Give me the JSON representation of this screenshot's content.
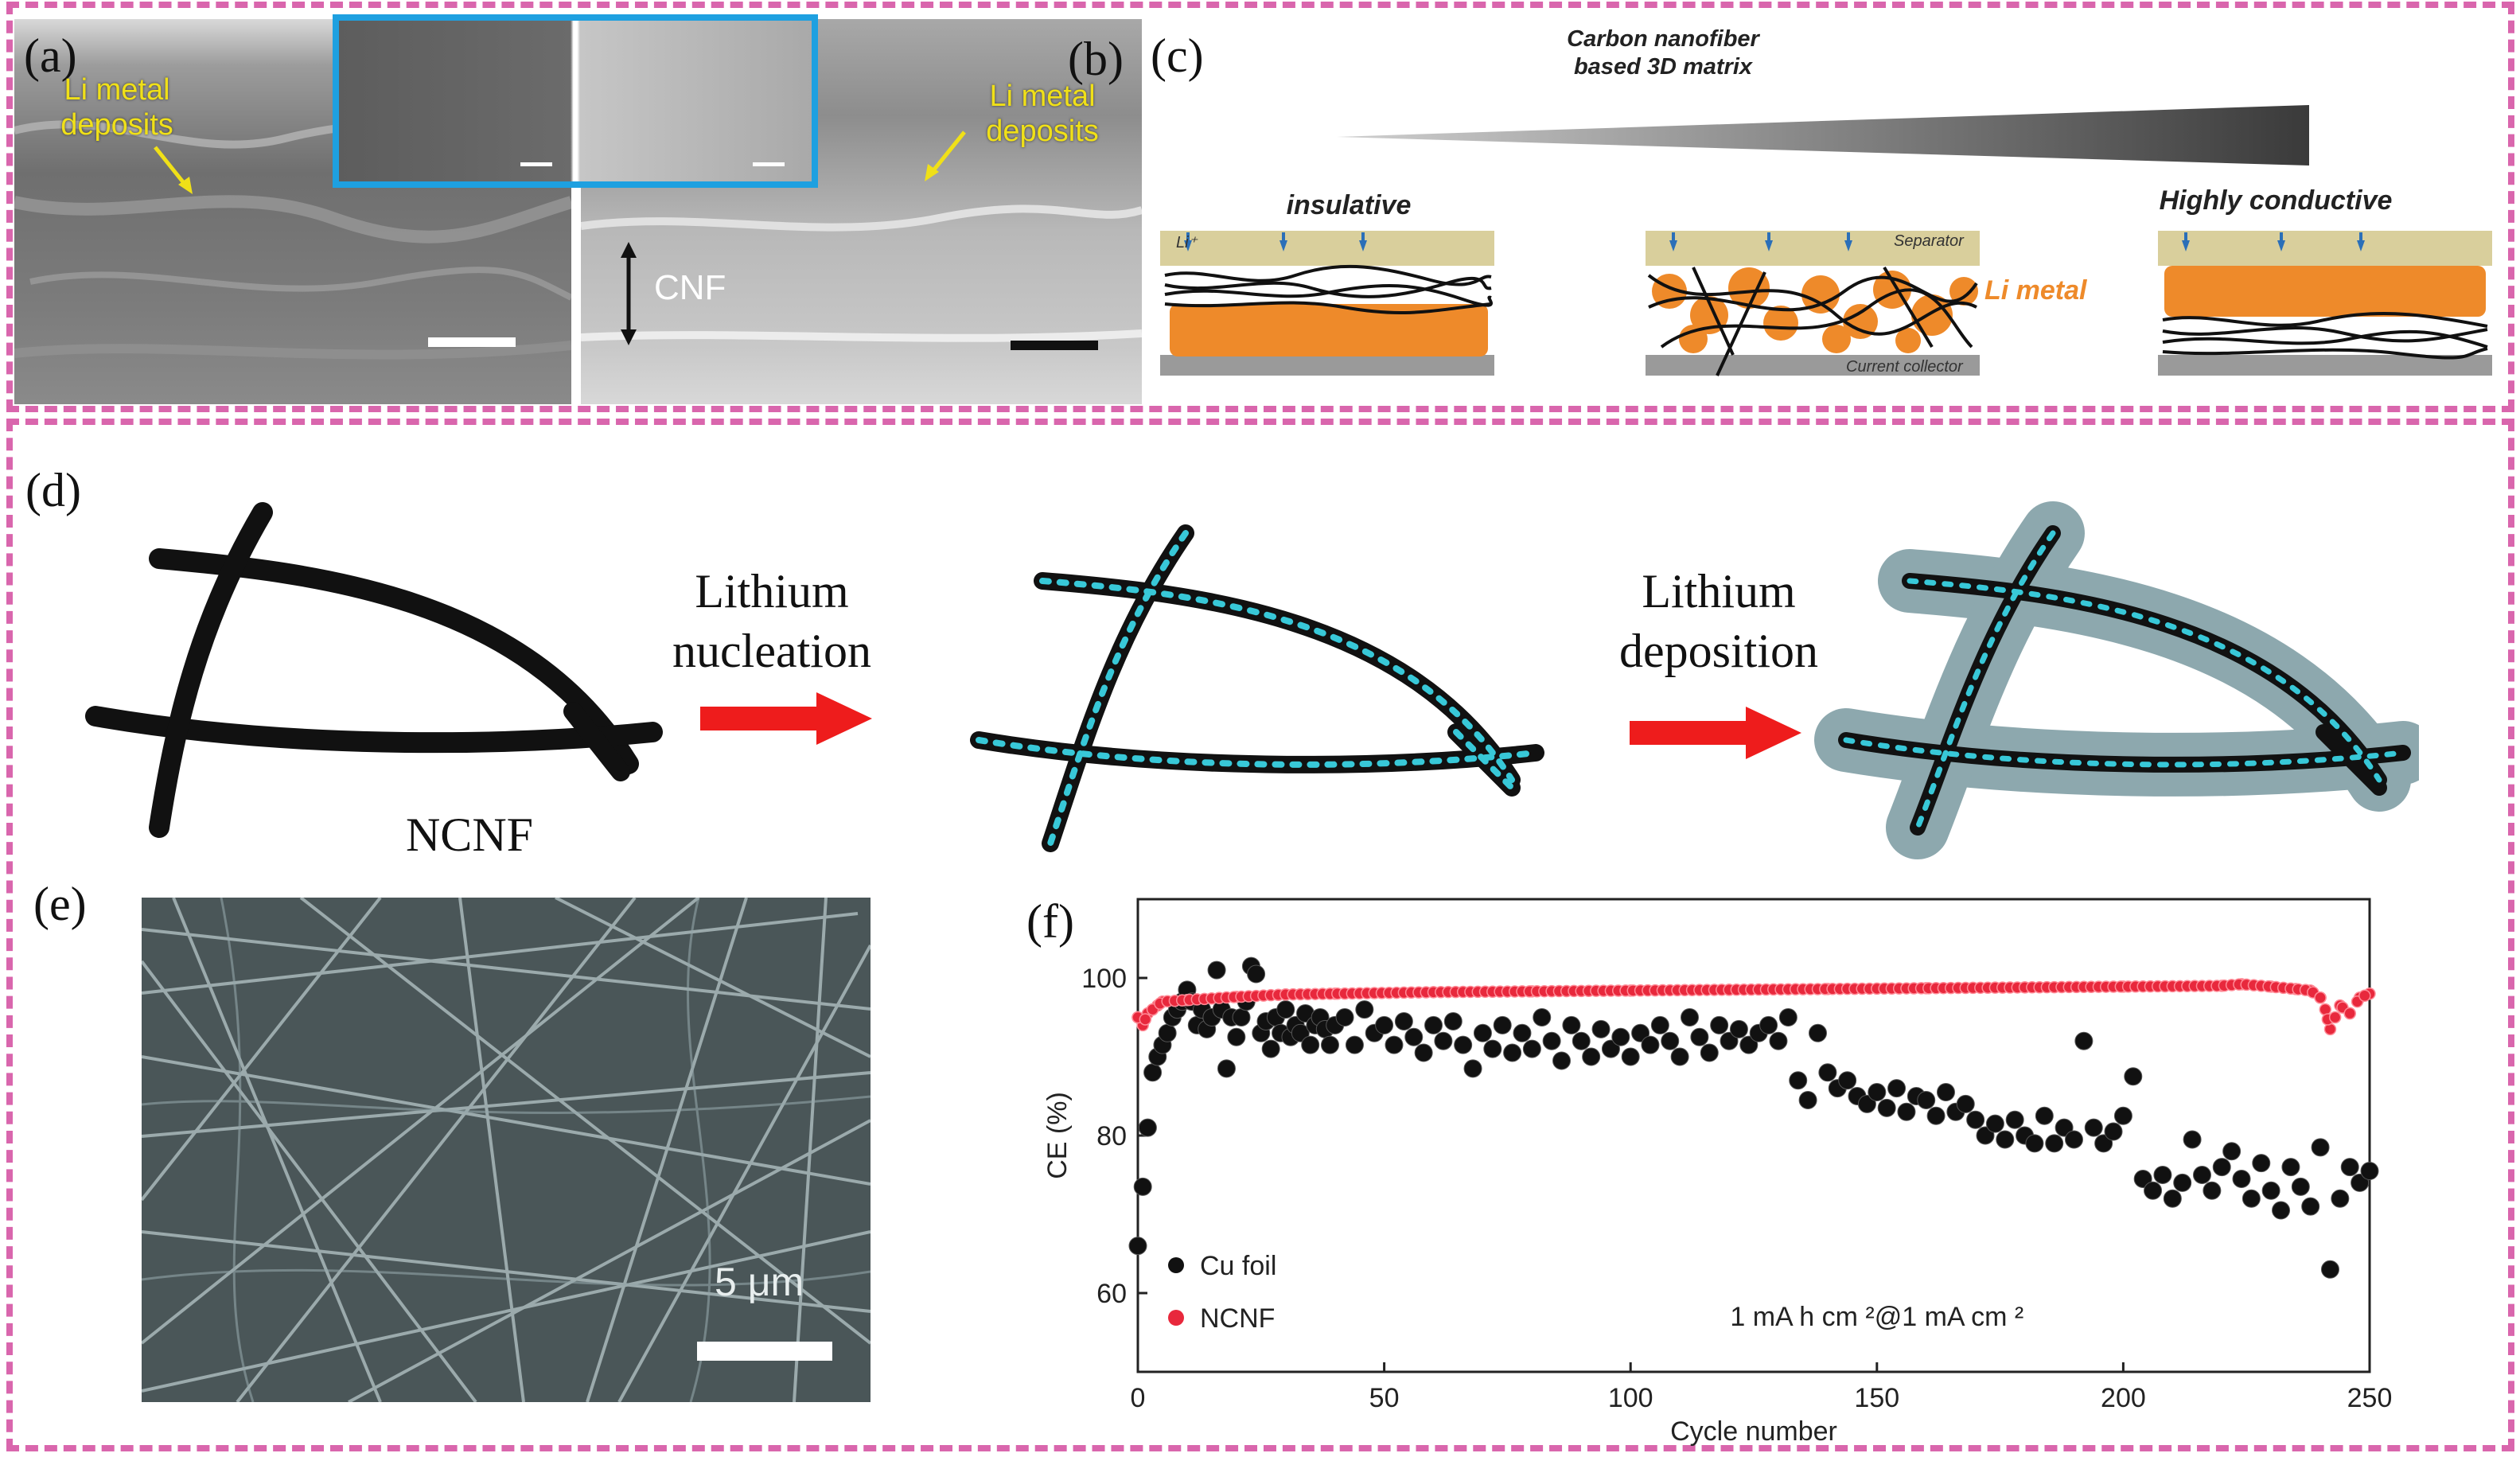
{
  "panels": {
    "a": {
      "label": "(a)",
      "annotation": "Li metal\ndeposits"
    },
    "b": {
      "label": "(b)",
      "annotation": "Li metal\ndeposits",
      "thickness_label": "CNF"
    },
    "c": {
      "label": "(c)",
      "title": "Carbon nanofiber\nbased 3D matrix",
      "left_caption": "insulative",
      "right_caption": "Highly conductive",
      "separator_label": "Separator",
      "collector_label": "Current collector",
      "li_metal_label": "Li metal",
      "ion_label": "Li⁺"
    },
    "d": {
      "label": "(d)",
      "step1": "Lithium\nnucleation",
      "step2": "Lithium\ndeposition",
      "fiber_label": "NCNF"
    },
    "e": {
      "label": "(e)",
      "scale_bar": "5 μm"
    },
    "f": {
      "label": "(f)"
    }
  },
  "colors": {
    "frame": "#d966ad",
    "highlight_box": "#1ea0e0",
    "li_metal": "#ee8a2a",
    "arrow": "#ee1c1c",
    "nuclei": "#38c8d8",
    "deposit": "#7a9aa0"
  },
  "chart_data": {
    "type": "scatter",
    "xlabel": "Cycle number",
    "ylabel": "CE (%)",
    "xlim": [
      0,
      250
    ],
    "ylim": [
      50,
      110
    ],
    "xticks": [
      0,
      50,
      100,
      150,
      200,
      250
    ],
    "yticks": [
      60,
      80,
      100
    ],
    "legend_position": "bottom-left",
    "annotation": "1 mA h cm ²@1 mA cm ²",
    "series": [
      {
        "name": "Cu foil",
        "color": "#111111",
        "points": [
          [
            0,
            66
          ],
          [
            1,
            73.5
          ],
          [
            2,
            81
          ],
          [
            3,
            88
          ],
          [
            4,
            90
          ],
          [
            5,
            91.5
          ],
          [
            6,
            93
          ],
          [
            7,
            95
          ],
          [
            8,
            96
          ],
          [
            9,
            97
          ],
          [
            10,
            98.5
          ],
          [
            11,
            97
          ],
          [
            12,
            94
          ],
          [
            13,
            96
          ],
          [
            14,
            93.5
          ],
          [
            15,
            95
          ],
          [
            16,
            101
          ],
          [
            17,
            96
          ],
          [
            18,
            88.5
          ],
          [
            19,
            95
          ],
          [
            20,
            92.5
          ],
          [
            21,
            95
          ],
          [
            22,
            97
          ],
          [
            23,
            101.5
          ],
          [
            24,
            100.5
          ],
          [
            25,
            93
          ],
          [
            26,
            94.5
          ],
          [
            27,
            91
          ],
          [
            28,
            95
          ],
          [
            29,
            93
          ],
          [
            30,
            96
          ],
          [
            31,
            92.5
          ],
          [
            32,
            94
          ],
          [
            33,
            93
          ],
          [
            34,
            95.5
          ],
          [
            35,
            91.5
          ],
          [
            36,
            94
          ],
          [
            37,
            95
          ],
          [
            38,
            93.5
          ],
          [
            39,
            91.5
          ],
          [
            40,
            94
          ],
          [
            42,
            95
          ],
          [
            44,
            91.5
          ],
          [
            46,
            96
          ],
          [
            48,
            93
          ],
          [
            50,
            94
          ],
          [
            52,
            91.5
          ],
          [
            54,
            94.5
          ],
          [
            56,
            92.5
          ],
          [
            58,
            90.5
          ],
          [
            60,
            94
          ],
          [
            62,
            92
          ],
          [
            64,
            94.5
          ],
          [
            66,
            91.5
          ],
          [
            68,
            88.5
          ],
          [
            70,
            93
          ],
          [
            72,
            91
          ],
          [
            74,
            94
          ],
          [
            76,
            90.5
          ],
          [
            78,
            93
          ],
          [
            80,
            91
          ],
          [
            82,
            95
          ],
          [
            84,
            92
          ],
          [
            86,
            89.5
          ],
          [
            88,
            94
          ],
          [
            90,
            92
          ],
          [
            92,
            90
          ],
          [
            94,
            93.5
          ],
          [
            96,
            91
          ],
          [
            98,
            92.5
          ],
          [
            100,
            90
          ],
          [
            102,
            93
          ],
          [
            104,
            91.5
          ],
          [
            106,
            94
          ],
          [
            108,
            92
          ],
          [
            110,
            90
          ],
          [
            112,
            95
          ],
          [
            114,
            92.5
          ],
          [
            116,
            90.5
          ],
          [
            118,
            94
          ],
          [
            120,
            92
          ],
          [
            122,
            93.5
          ],
          [
            124,
            91.5
          ],
          [
            126,
            93
          ],
          [
            128,
            94
          ],
          [
            130,
            92
          ],
          [
            132,
            95
          ],
          [
            134,
            87
          ],
          [
            136,
            84.5
          ],
          [
            138,
            93
          ],
          [
            140,
            88
          ],
          [
            142,
            86
          ],
          [
            144,
            87
          ],
          [
            146,
            85
          ],
          [
            148,
            84
          ],
          [
            150,
            85.5
          ],
          [
            152,
            83.5
          ],
          [
            154,
            86
          ],
          [
            156,
            83
          ],
          [
            158,
            85
          ],
          [
            160,
            84.5
          ],
          [
            162,
            82.5
          ],
          [
            164,
            85.5
          ],
          [
            166,
            83
          ],
          [
            168,
            84
          ],
          [
            170,
            82
          ],
          [
            172,
            80
          ],
          [
            174,
            81.5
          ],
          [
            176,
            79.5
          ],
          [
            178,
            82
          ],
          [
            180,
            80
          ],
          [
            182,
            79
          ],
          [
            184,
            82.5
          ],
          [
            186,
            79
          ],
          [
            188,
            81
          ],
          [
            190,
            79.5
          ],
          [
            192,
            92
          ],
          [
            194,
            81
          ],
          [
            196,
            79
          ],
          [
            198,
            80.5
          ],
          [
            200,
            82.5
          ],
          [
            202,
            87.5
          ],
          [
            204,
            74.5
          ],
          [
            206,
            73
          ],
          [
            208,
            75
          ],
          [
            210,
            72
          ],
          [
            212,
            74
          ],
          [
            214,
            79.5
          ],
          [
            216,
            75
          ],
          [
            218,
            73
          ],
          [
            220,
            76
          ],
          [
            222,
            78
          ],
          [
            224,
            74.5
          ],
          [
            226,
            72
          ],
          [
            228,
            76.5
          ],
          [
            230,
            73
          ],
          [
            232,
            70.5
          ],
          [
            234,
            76
          ],
          [
            236,
            73.5
          ],
          [
            238,
            71
          ],
          [
            240,
            78.5
          ],
          [
            242,
            63
          ],
          [
            244,
            72
          ],
          [
            246,
            76
          ],
          [
            248,
            74
          ],
          [
            250,
            75.5
          ]
        ]
      },
      {
        "name": "NCNF",
        "color": "#e8283c",
        "points": [
          [
            0,
            95
          ],
          [
            1,
            94
          ],
          [
            2,
            95.5
          ],
          [
            3,
            96
          ],
          [
            4,
            96.5
          ],
          [
            5,
            97
          ],
          [
            10,
            97.2
          ],
          [
            20,
            97.6
          ],
          [
            30,
            97.9
          ],
          [
            40,
            98
          ],
          [
            60,
            98.2
          ],
          [
            80,
            98.3
          ],
          [
            100,
            98.4
          ],
          [
            120,
            98.5
          ],
          [
            140,
            98.6
          ],
          [
            160,
            98.7
          ],
          [
            180,
            98.8
          ],
          [
            200,
            98.9
          ],
          [
            220,
            99
          ],
          [
            224,
            99.2
          ],
          [
            230,
            98.9
          ],
          [
            235,
            98.6
          ],
          [
            238,
            98.4
          ],
          [
            240,
            97.5
          ],
          [
            241,
            96
          ],
          [
            242,
            93.5
          ],
          [
            244,
            96.5
          ],
          [
            246,
            95.5
          ],
          [
            248,
            97.5
          ],
          [
            250,
            98
          ]
        ]
      }
    ]
  }
}
